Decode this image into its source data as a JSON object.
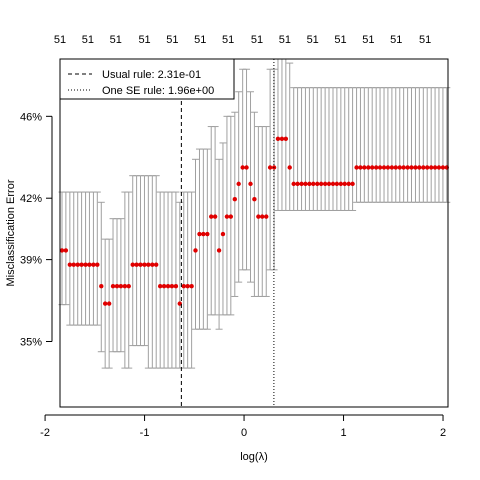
{
  "chart_data": {
    "type": "scatter",
    "xlabel": "log(λ)",
    "ylabel": "Misclassification Error",
    "xlim": [
      -1.85,
      2.05
    ],
    "ylim": [
      0.318,
      0.488
    ],
    "x_ticks": [
      -2,
      -1,
      0,
      1,
      2
    ],
    "x_tick_labels": [
      "-2",
      "-1",
      "0",
      "1",
      "2"
    ],
    "y_ticks": [
      0.35,
      0.39,
      0.42,
      0.46
    ],
    "y_tick_labels": [
      "35%",
      "39%",
      "42%",
      "46%"
    ],
    "top_axis_values": [
      -1.85,
      -1.57,
      -1.29,
      -1.0,
      -0.72,
      -0.44,
      -0.16,
      0.13,
      0.41,
      0.69,
      0.97,
      1.25,
      1.53,
      1.82
    ],
    "top_axis_labels": [
      "51",
      "51",
      "51",
      "51",
      "51",
      "51",
      "51",
      "51",
      "51",
      "51",
      "51",
      "51",
      "51",
      "51"
    ],
    "grid": false,
    "point_color": "#e00000",
    "errorbar_color": "#a0a0a0",
    "vlines": [
      {
        "x": -0.63,
        "style": "dashed",
        "label": "Usual rule: 2.31e-01"
      },
      {
        "x": 0.3,
        "style": "dotted",
        "label": "One SE rule: 1.96e+00"
      }
    ],
    "legend_position": "top-left",
    "legend": [
      {
        "label": "Usual rule: 2.31e-01",
        "style": "dashed"
      },
      {
        "label": "One SE rule: 1.96e+00",
        "style": "dotted"
      }
    ],
    "x": [
      -1.83,
      -1.791,
      -1.751,
      -1.712,
      -1.672,
      -1.633,
      -1.593,
      -1.554,
      -1.514,
      -1.475,
      -1.435,
      -1.396,
      -1.356,
      -1.317,
      -1.277,
      -1.238,
      -1.198,
      -1.159,
      -1.119,
      -1.08,
      -1.041,
      -1.001,
      -0.962,
      -0.922,
      -0.883,
      -0.843,
      -0.804,
      -0.764,
      -0.725,
      -0.685,
      -0.646,
      -0.606,
      -0.567,
      -0.527,
      -0.488,
      -0.448,
      -0.409,
      -0.369,
      -0.33,
      -0.291,
      -0.251,
      -0.212,
      -0.172,
      -0.133,
      -0.093,
      -0.054,
      -0.014,
      0.025,
      0.065,
      0.104,
      0.144,
      0.183,
      0.223,
      0.262,
      0.302,
      0.341,
      0.381,
      0.42,
      0.459,
      0.499,
      0.538,
      0.578,
      0.617,
      0.657,
      0.696,
      0.736,
      0.775,
      0.815,
      0.854,
      0.894,
      0.933,
      0.973,
      1.012,
      1.052,
      1.091,
      1.131,
      1.17,
      1.209,
      1.249,
      1.288,
      1.328,
      1.367,
      1.407,
      1.446,
      1.486,
      1.525,
      1.565,
      1.604,
      1.644,
      1.683,
      1.723,
      1.762,
      1.802,
      1.841,
      1.881,
      1.92,
      1.959,
      1.999,
      2.038
    ],
    "y": [
      0.3945,
      0.3945,
      0.3875,
      0.3875,
      0.3875,
      0.3875,
      0.3875,
      0.3875,
      0.3875,
      0.3875,
      0.377,
      0.3685,
      0.3685,
      0.377,
      0.377,
      0.377,
      0.377,
      0.377,
      0.3875,
      0.3875,
      0.3875,
      0.3875,
      0.3875,
      0.3875,
      0.3875,
      0.377,
      0.377,
      0.377,
      0.377,
      0.377,
      0.3685,
      0.377,
      0.377,
      0.377,
      0.3945,
      0.4025,
      0.4025,
      0.4025,
      0.411,
      0.411,
      0.3945,
      0.4025,
      0.411,
      0.411,
      0.4195,
      0.427,
      0.435,
      0.435,
      0.427,
      0.4195,
      0.411,
      0.411,
      0.411,
      0.435,
      0.435,
      0.449,
      0.449,
      0.449,
      0.435,
      0.427,
      0.427,
      0.427,
      0.427,
      0.427,
      0.427,
      0.427,
      0.427,
      0.427,
      0.427,
      0.427,
      0.427,
      0.427,
      0.427,
      0.427,
      0.427,
      0.435,
      0.435,
      0.435,
      0.435,
      0.435,
      0.435,
      0.435,
      0.435,
      0.435,
      0.435,
      0.435,
      0.435,
      0.435,
      0.435,
      0.435,
      0.435,
      0.435,
      0.435,
      0.435,
      0.435,
      0.435,
      0.435,
      0.435,
      0.435
    ],
    "ylo": [
      0.368,
      0.368,
      0.358,
      0.358,
      0.358,
      0.358,
      0.358,
      0.358,
      0.358,
      0.358,
      0.345,
      0.337,
      0.337,
      0.345,
      0.345,
      0.345,
      0.337,
      0.337,
      0.348,
      0.348,
      0.348,
      0.348,
      0.337,
      0.337,
      0.337,
      0.337,
      0.337,
      0.337,
      0.337,
      0.337,
      0.337,
      0.337,
      0.337,
      0.337,
      0.356,
      0.356,
      0.356,
      0.356,
      0.363,
      0.363,
      0.356,
      0.363,
      0.363,
      0.363,
      0.372,
      0.379,
      0.385,
      0.385,
      0.379,
      0.372,
      0.372,
      0.372,
      0.372,
      0.385,
      0.385,
      0.414,
      0.414,
      0.414,
      0.414,
      0.414,
      0.414,
      0.414,
      0.414,
      0.414,
      0.414,
      0.414,
      0.414,
      0.414,
      0.414,
      0.414,
      0.414,
      0.414,
      0.414,
      0.414,
      0.414,
      0.418,
      0.418,
      0.418,
      0.418,
      0.418,
      0.418,
      0.418,
      0.418,
      0.418,
      0.418,
      0.418,
      0.418,
      0.418,
      0.418,
      0.418,
      0.418,
      0.418,
      0.418,
      0.418,
      0.418,
      0.418,
      0.418,
      0.418,
      0.418
    ],
    "yhi": [
      0.423,
      0.423,
      0.423,
      0.423,
      0.423,
      0.423,
      0.423,
      0.423,
      0.423,
      0.423,
      0.418,
      0.4,
      0.4,
      0.41,
      0.41,
      0.41,
      0.423,
      0.423,
      0.431,
      0.431,
      0.431,
      0.431,
      0.431,
      0.431,
      0.431,
      0.423,
      0.423,
      0.423,
      0.423,
      0.423,
      0.418,
      0.423,
      0.423,
      0.423,
      0.439,
      0.444,
      0.444,
      0.444,
      0.455,
      0.455,
      0.439,
      0.447,
      0.46,
      0.46,
      0.462,
      0.472,
      0.483,
      0.483,
      0.472,
      0.462,
      0.455,
      0.455,
      0.455,
      0.483,
      0.483,
      0.488,
      0.488,
      0.488,
      0.486,
      0.474,
      0.474,
      0.474,
      0.474,
      0.474,
      0.474,
      0.474,
      0.474,
      0.474,
      0.474,
      0.474,
      0.474,
      0.474,
      0.474,
      0.474,
      0.474,
      0.474,
      0.474,
      0.474,
      0.474,
      0.474,
      0.474,
      0.474,
      0.474,
      0.474,
      0.474,
      0.474,
      0.474,
      0.474,
      0.474,
      0.474,
      0.474,
      0.474,
      0.474,
      0.474,
      0.474,
      0.474,
      0.474,
      0.474,
      0.474
    ]
  }
}
